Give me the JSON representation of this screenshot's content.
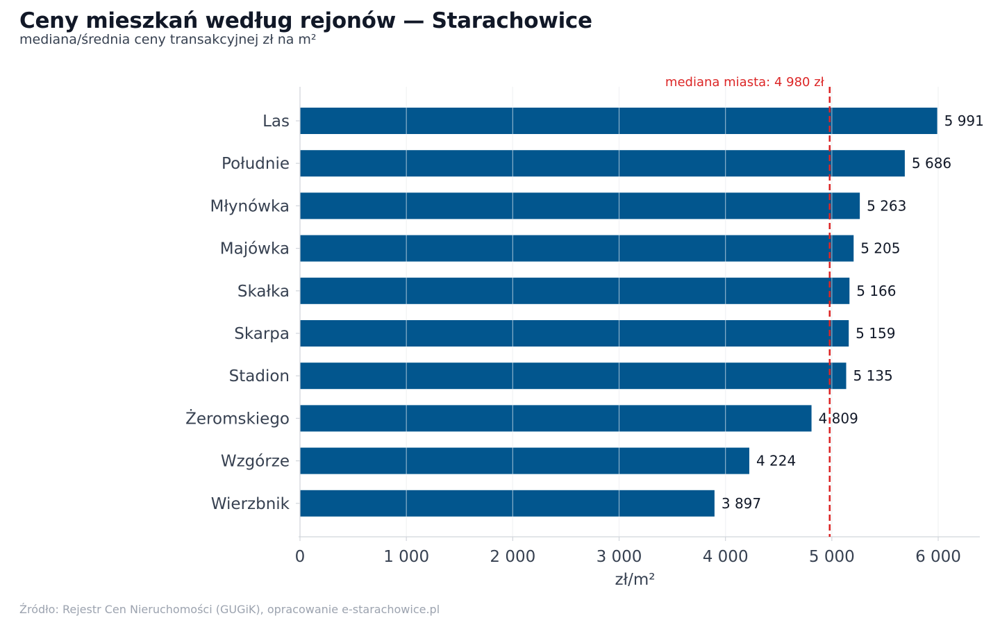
{
  "title": "Ceny mieszkań według rejonów — Starachowice",
  "subtitle": "mediana/średnia ceny transakcyjnej zł na m²",
  "source": "Źródło: Rejestr Cen Nieruchomości (GUGiK), opracowanie e-starachowice.pl",
  "colors": {
    "bar": "#02568e",
    "reference_line": "#dc2626",
    "grid": "#e5e7eb",
    "axis": "#d1d5db"
  },
  "chart_data": {
    "type": "bar",
    "orientation": "horizontal",
    "categories": [
      "Las",
      "Południe",
      "Młynówka",
      "Majówka",
      "Skałka",
      "Skarpa",
      "Stadion",
      "Żeromskiego",
      "Wzgórze",
      "Wierzbnik"
    ],
    "values": [
      5991,
      5686,
      5263,
      5205,
      5166,
      5159,
      5135,
      4809,
      4224,
      3897
    ],
    "value_labels": [
      "5 991",
      "5 686",
      "5 263",
      "5 205",
      "5 166",
      "5 159",
      "5 135",
      "4 809",
      "4 224",
      "3 897"
    ],
    "xlabel": "zł/m²",
    "xlim": [
      0,
      6300
    ],
    "xticks": [
      0,
      1000,
      2000,
      3000,
      4000,
      5000,
      6000
    ],
    "xtick_labels": [
      "0",
      "1 000",
      "2 000",
      "3 000",
      "4 000",
      "5 000",
      "6 000"
    ],
    "grid": "vertical",
    "reference_line": {
      "value": 4980,
      "label": "mediana miasta: 4 980 zł",
      "style": "dashed"
    }
  }
}
